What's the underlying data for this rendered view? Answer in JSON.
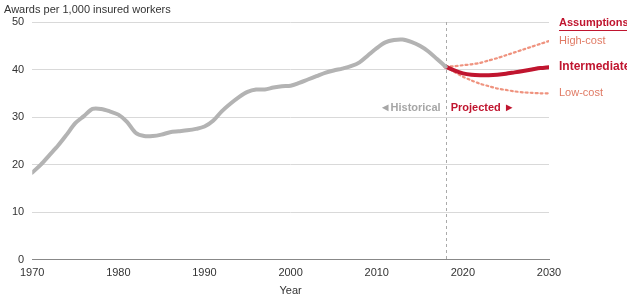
{
  "chart_data": {
    "type": "line",
    "y_label": "Awards per 1,000 insured workers",
    "x_label": "Year",
    "x": [
      1970,
      1971,
      1972,
      1973,
      1974,
      1975,
      1976,
      1977,
      1978,
      1979,
      1980,
      1981,
      1982,
      1983,
      1984,
      1985,
      1986,
      1987,
      1988,
      1989,
      1990,
      1991,
      1992,
      1993,
      1994,
      1995,
      1996,
      1997,
      1998,
      1999,
      2000,
      2001,
      2002,
      2003,
      2004,
      2005,
      2006,
      2007,
      2008,
      2009,
      2010,
      2011,
      2012,
      2013,
      2014,
      2015,
      2016,
      2017,
      2018,
      2019,
      2020,
      2021,
      2022,
      2023,
      2024,
      2025,
      2026,
      2027,
      2028,
      2029,
      2030
    ],
    "series": [
      {
        "color": "#b3b3b3",
        "line_style": "solid",
        "values": [
          18.3,
          20,
          22,
          24,
          26.3,
          28.7,
          30.2,
          31.7,
          31.7,
          31.2,
          30.5,
          29,
          26.7,
          26,
          26,
          26.3,
          26.8,
          27,
          27.2,
          27.5,
          28,
          29.2,
          31.2,
          32.8,
          34.2,
          35.3,
          35.8,
          35.8,
          36.2,
          36.5,
          36.6,
          37.2,
          37.9,
          38.6,
          39.3,
          39.8,
          40.2,
          40.7,
          41.5,
          43,
          44.5,
          45.7,
          46.2,
          46.3,
          45.8,
          45,
          43.8,
          42.2,
          40.6,
          null,
          null,
          null,
          null,
          null,
          null,
          null,
          null,
          null,
          null,
          null,
          null
        ]
      },
      {
        "name": "High-cost",
        "color": "#ef937f",
        "line_style": "dotted",
        "values": [
          null,
          null,
          null,
          null,
          null,
          null,
          null,
          null,
          null,
          null,
          null,
          null,
          null,
          null,
          null,
          null,
          null,
          null,
          null,
          null,
          null,
          null,
          null,
          null,
          null,
          null,
          null,
          null,
          null,
          null,
          null,
          null,
          null,
          null,
          null,
          null,
          null,
          null,
          null,
          null,
          null,
          null,
          null,
          null,
          null,
          null,
          null,
          null,
          40.6,
          40.7,
          40.9,
          41.1,
          41.4,
          41.9,
          42.4,
          43,
          43.6,
          44.2,
          44.8,
          45.4,
          46
        ]
      },
      {
        "name": "Intermediate",
        "color": "#c0152f",
        "line_style": "solid",
        "values": [
          null,
          null,
          null,
          null,
          null,
          null,
          null,
          null,
          null,
          null,
          null,
          null,
          null,
          null,
          null,
          null,
          null,
          null,
          null,
          null,
          null,
          null,
          null,
          null,
          null,
          null,
          null,
          null,
          null,
          null,
          null,
          null,
          null,
          null,
          null,
          null,
          null,
          null,
          null,
          null,
          null,
          null,
          null,
          null,
          null,
          null,
          null,
          null,
          40.6,
          39.8,
          39.2,
          38.9,
          38.8,
          38.8,
          38.9,
          39.1,
          39.4,
          39.7,
          40,
          40.3,
          40.5
        ]
      },
      {
        "name": "Low-cost",
        "color": "#ef937f",
        "line_style": "dotted",
        "values": [
          null,
          null,
          null,
          null,
          null,
          null,
          null,
          null,
          null,
          null,
          null,
          null,
          null,
          null,
          null,
          null,
          null,
          null,
          null,
          null,
          null,
          null,
          null,
          null,
          null,
          null,
          null,
          null,
          null,
          null,
          null,
          null,
          null,
          null,
          null,
          null,
          null,
          null,
          null,
          null,
          null,
          null,
          null,
          null,
          null,
          null,
          null,
          null,
          40.6,
          39.5,
          38.5,
          37.7,
          37,
          36.5,
          36,
          35.7,
          35.4,
          35.2,
          35.1,
          35,
          35
        ]
      }
    ],
    "legend_title": "Assumptions:",
    "divider": {
      "x": 2018,
      "left_label": "◄Historical",
      "right_label": "Projected ►"
    },
    "xlim": [
      1970,
      2030
    ],
    "xticks": [
      1970,
      1980,
      1990,
      2000,
      2010,
      2020,
      2030
    ],
    "ylim": [
      0,
      50
    ],
    "yticks": [
      0,
      10,
      20,
      30,
      40,
      50
    ],
    "grid": true
  }
}
